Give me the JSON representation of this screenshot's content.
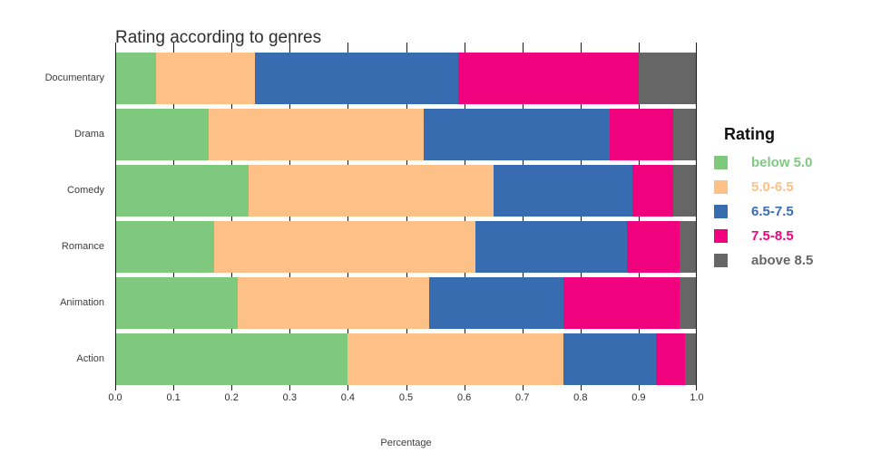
{
  "chart_data": {
    "type": "bar",
    "orientation": "horizontal",
    "stacked": true,
    "title": "Rating according to genres",
    "xlabel": "Percentage",
    "ylabel": "",
    "xlim": [
      0,
      1
    ],
    "grid": true,
    "x_tick_labels": [
      "0.0",
      "0.1",
      "0.2",
      "0.3",
      "0.4",
      "0.5",
      "0.6",
      "0.7",
      "0.8",
      "0.9",
      "1.0"
    ],
    "categories": [
      "Documentary",
      "Drama",
      "Comedy",
      "Romance",
      "Animation",
      "Action"
    ],
    "legend": {
      "title": "Rating",
      "position": "right"
    },
    "series": [
      {
        "name": "below 5.0",
        "color": "#7FC97F",
        "values": [
          0.07,
          0.16,
          0.23,
          0.17,
          0.21,
          0.4
        ]
      },
      {
        "name": "5.0-6.5",
        "color": "#FDC086",
        "values": [
          0.17,
          0.37,
          0.42,
          0.45,
          0.33,
          0.37
        ]
      },
      {
        "name": "6.5-7.5",
        "color": "#386CB0",
        "values": [
          0.35,
          0.32,
          0.24,
          0.26,
          0.23,
          0.16
        ]
      },
      {
        "name": "7.5-8.5",
        "color": "#F0027F",
        "values": [
          0.31,
          0.11,
          0.07,
          0.09,
          0.2,
          0.05
        ]
      },
      {
        "name": "above 8.5",
        "color": "#666666",
        "values": [
          0.1,
          0.04,
          0.04,
          0.03,
          0.03,
          0.02
        ]
      }
    ],
    "axis_color": "#1a1a1a"
  }
}
